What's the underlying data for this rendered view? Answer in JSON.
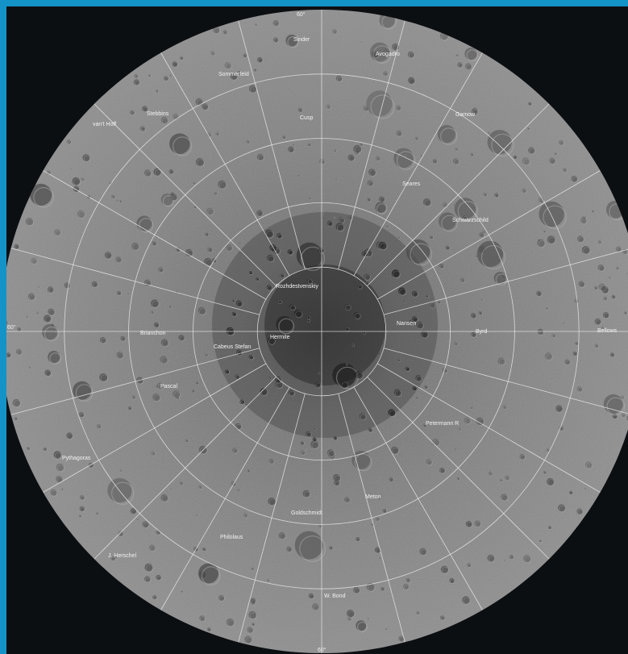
{
  "map": {
    "projection": "polar-stereographic",
    "body": "Moon",
    "pole": "north",
    "colors": {
      "frame": "#1493c8",
      "space": "#0c0f12",
      "grid": "#e8e8e8",
      "surface": "#7a7a7a"
    },
    "degree_labels": {
      "top": "60°",
      "bottom": "60°",
      "left": "60°"
    },
    "feature_labels": [
      {
        "id": "sinder",
        "text": "Sinder"
      },
      {
        "id": "avogadro",
        "text": "Avogadro"
      },
      {
        "id": "sommerfeld",
        "text": "Sommerfeld"
      },
      {
        "id": "stebbins",
        "text": "Stebbins"
      },
      {
        "id": "vanthoff",
        "text": "van't Hoff"
      },
      {
        "id": "gamow",
        "text": "Gamow"
      },
      {
        "id": "seares",
        "text": "Seares"
      },
      {
        "id": "schwarzschild",
        "text": "Schwarzschild"
      },
      {
        "id": "rozhdestvenskiy",
        "text": "Rozhdestvenskiy"
      },
      {
        "id": "nansen",
        "text": "Nansen"
      },
      {
        "id": "brianchon",
        "text": "Brianchon"
      },
      {
        "id": "hermite",
        "text": "Hermite"
      },
      {
        "id": "byrd",
        "text": "Byrd"
      },
      {
        "id": "cabeus",
        "text": "Cabeus Stefan"
      },
      {
        "id": "pascal",
        "text": "Pascal"
      },
      {
        "id": "petermann",
        "text": "Petermann R"
      },
      {
        "id": "bellows",
        "text": "Bellows"
      },
      {
        "id": "pythagoras",
        "text": "Pythagoras"
      },
      {
        "id": "meton",
        "text": "Meton"
      },
      {
        "id": "goldschmidt",
        "text": "Goldschmidt"
      },
      {
        "id": "philolaus",
        "text": "Philolaus"
      },
      {
        "id": "jherschel",
        "text": "J. Herschel"
      },
      {
        "id": "wbond",
        "text": "W. Bond"
      },
      {
        "id": "cusp",
        "text": "Cusp"
      }
    ]
  }
}
